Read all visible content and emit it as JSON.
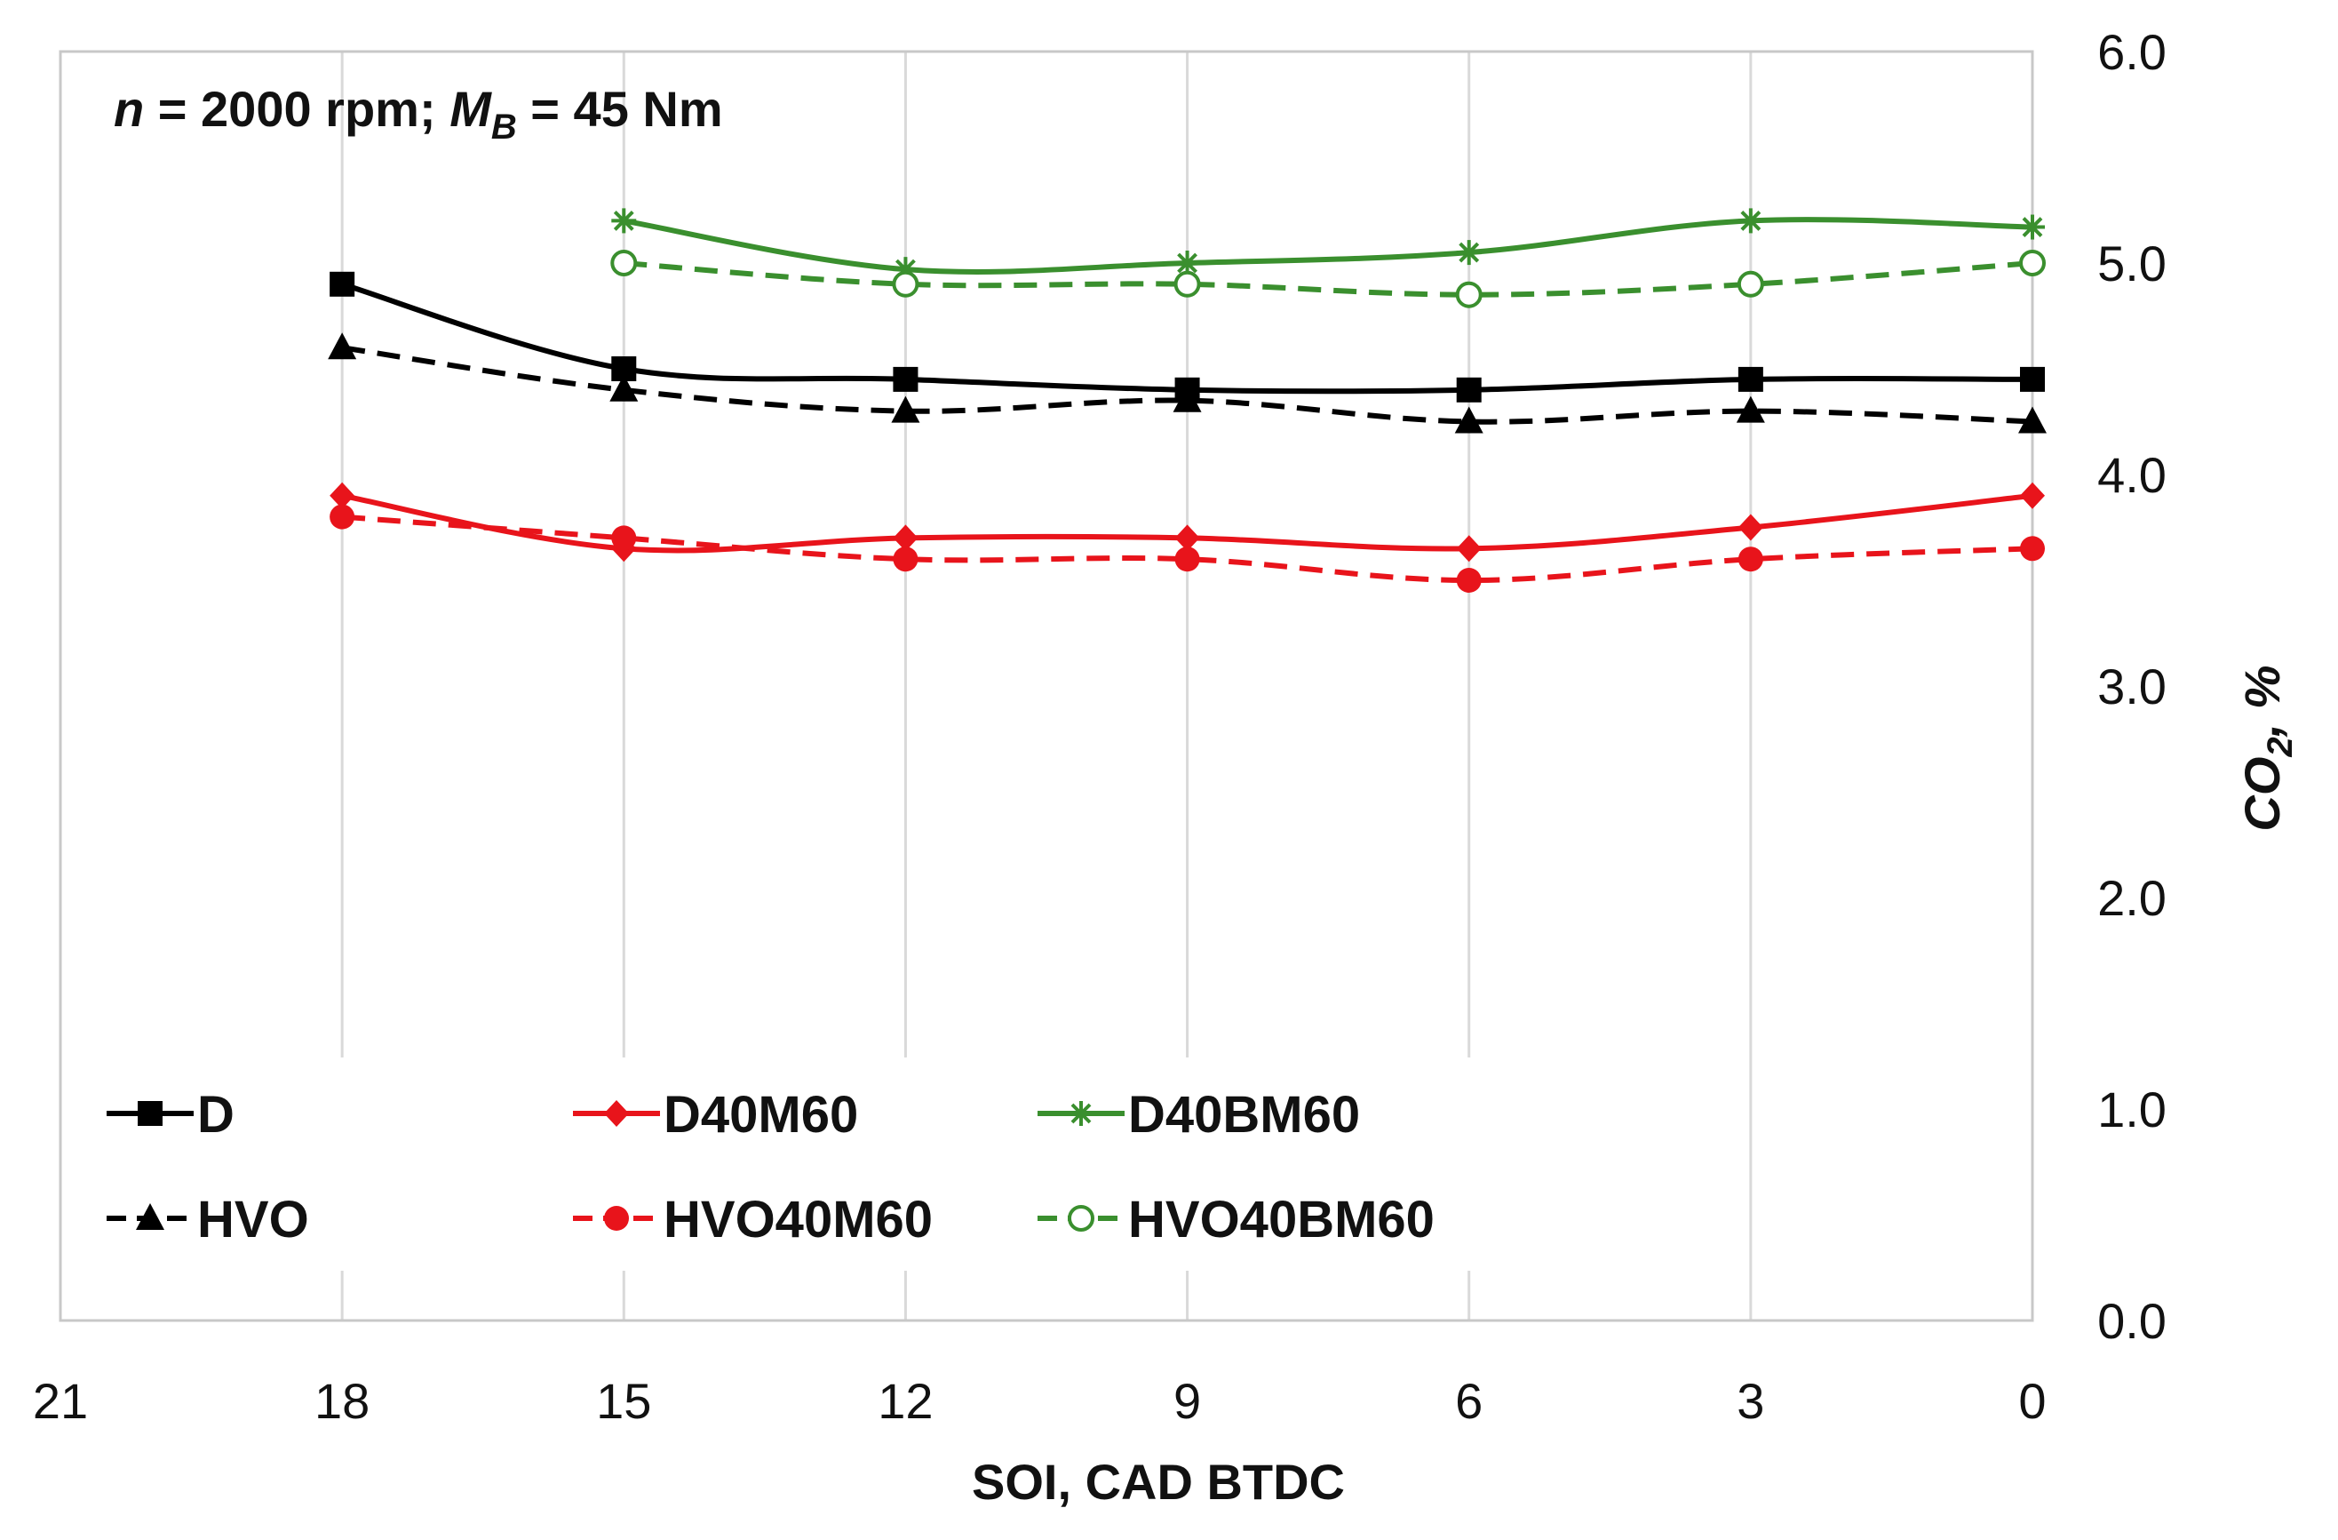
{
  "chart_data": {
    "type": "line",
    "title": "",
    "annotation": {
      "n_symbol": "n",
      "n_value": " = 2000 rpm; ",
      "m_symbol": "M",
      "m_sub": "B",
      "m_value": " = 45 Nm"
    },
    "xlabel": "SOI,  CAD BTDC",
    "ylabel_main": "CO",
    "ylabel_sub": "2",
    "ylabel_rest": ", %",
    "x_reversed": true,
    "xlim": [
      21,
      0
    ],
    "ylim": [
      0,
      6
    ],
    "x_ticks": [
      "21",
      "18",
      "15",
      "12",
      "9",
      "6",
      "3",
      "0"
    ],
    "y_ticks": [
      "0.0",
      "1.0",
      "2.0",
      "3.0",
      "4.0",
      "5.0",
      "6.0"
    ],
    "y_axis_side": "right",
    "grid": "vertical",
    "legend_position": "bottom-left",
    "series": [
      {
        "name": "D",
        "color": "#000000",
        "dash": "solid",
        "marker": "square",
        "x": [
          18,
          15,
          12,
          9,
          6,
          3,
          0
        ],
        "values": [
          4.9,
          4.5,
          4.45,
          4.4,
          4.4,
          4.45,
          4.45
        ]
      },
      {
        "name": "HVO",
        "color": "#000000",
        "dash": "dashed",
        "marker": "triangle",
        "x": [
          18,
          15,
          12,
          9,
          6,
          3,
          0
        ],
        "values": [
          4.6,
          4.4,
          4.3,
          4.35,
          4.25,
          4.3,
          4.25
        ]
      },
      {
        "name": "D40M60",
        "color": "#e8141b",
        "dash": "solid",
        "marker": "diamond",
        "x": [
          18,
          15,
          12,
          9,
          6,
          3,
          0
        ],
        "values": [
          3.9,
          3.65,
          3.7,
          3.7,
          3.65,
          3.75,
          3.9
        ]
      },
      {
        "name": "HVO40M60",
        "color": "#e8141b",
        "dash": "dashed",
        "marker": "circle",
        "x": [
          18,
          15,
          12,
          9,
          6,
          3,
          0
        ],
        "values": [
          3.8,
          3.7,
          3.6,
          3.6,
          3.5,
          3.6,
          3.65
        ]
      },
      {
        "name": "D40BM60",
        "color": "#3a8f2e",
        "dash": "solid",
        "marker": "star",
        "x": [
          15,
          12,
          9,
          6,
          3,
          0
        ],
        "values": [
          5.2,
          4.97,
          5.0,
          5.05,
          5.2,
          5.17
        ]
      },
      {
        "name": "HVO40BM60",
        "color": "#3a8f2e",
        "dash": "dashed",
        "marker": "open-circle",
        "x": [
          15,
          12,
          9,
          6,
          3,
          0
        ],
        "values": [
          5.0,
          4.9,
          4.9,
          4.85,
          4.9,
          5.0
        ]
      }
    ]
  }
}
